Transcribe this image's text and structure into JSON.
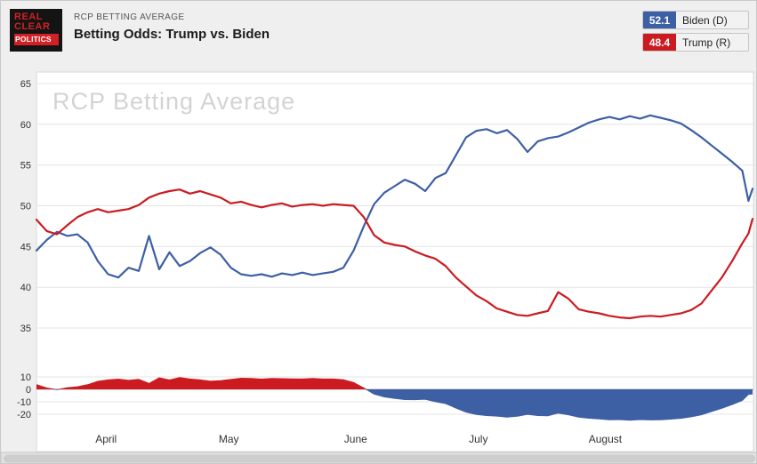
{
  "header": {
    "logo": {
      "line1": "REAL",
      "line2": "CLEAR",
      "line3": "POLITICS"
    },
    "kicker": "RCP BETTING AVERAGE",
    "title": "Betting Odds: Trump vs. Biden",
    "legend": [
      {
        "value": "52.1",
        "label": "Biden (D)",
        "color": "#3d5fa4"
      },
      {
        "value": "48.4",
        "label": "Trump (R)",
        "color": "#cb1b21"
      }
    ]
  },
  "chart_data": {
    "type": "line",
    "title": "RCP Betting Average",
    "watermark": "RCP Betting Average",
    "x_domain_days": [
      0,
      175
    ],
    "months": [
      {
        "label": "April",
        "day": 17
      },
      {
        "label": "May",
        "day": 47
      },
      {
        "label": "June",
        "day": 78
      },
      {
        "label": "July",
        "day": 108
      },
      {
        "label": "August",
        "day": 139
      }
    ],
    "main_panel": {
      "y_ticks": [
        65,
        60,
        55,
        50,
        45,
        40,
        35
      ],
      "y_range": [
        35,
        65
      ],
      "grid": true
    },
    "spread_panel": {
      "y_ticks": [
        10,
        0,
        -10,
        -20
      ],
      "note": "spread = Trump minus Biden; red area = Trump lead, blue area = Biden lead"
    },
    "days": [
      0,
      2.5,
      5,
      7.5,
      10,
      12.5,
      15,
      17.5,
      20,
      22.5,
      25,
      27.5,
      30,
      32.5,
      35,
      37.5,
      40,
      42.5,
      45,
      47.5,
      50,
      52.5,
      55,
      57.5,
      60,
      62.5,
      65,
      67.5,
      70,
      72.5,
      75,
      77.5,
      80,
      82.5,
      85,
      87.5,
      90,
      92.5,
      95,
      97.5,
      100,
      102.5,
      105,
      107.5,
      110,
      112.5,
      115,
      117.5,
      120,
      122.5,
      125,
      127.5,
      130,
      132.5,
      135,
      137.5,
      140,
      142.5,
      145,
      147.5,
      150,
      152.5,
      155,
      157.5,
      160,
      162.5,
      165,
      167.5,
      170,
      172.5,
      174,
      175
    ],
    "series": [
      {
        "name": "Biden (D)",
        "color": "#3d5fa4",
        "values": [
          44.5,
          45.8,
          46.8,
          46.3,
          46.5,
          45.5,
          43.2,
          41.6,
          41.2,
          42.4,
          42.0,
          46.3,
          42.2,
          44.3,
          42.6,
          43.2,
          44.2,
          44.9,
          44.0,
          42.4,
          41.6,
          41.4,
          41.6,
          41.3,
          41.7,
          41.5,
          41.8,
          41.5,
          41.7,
          41.9,
          42.4,
          44.5,
          47.5,
          50.2,
          51.6,
          52.4,
          53.2,
          52.7,
          51.8,
          53.4,
          54.0,
          56.2,
          58.4,
          59.2,
          59.4,
          58.9,
          59.3,
          58.2,
          56.6,
          57.9,
          58.3,
          58.5,
          59.0,
          59.6,
          60.2,
          60.6,
          60.9,
          60.6,
          61.0,
          60.7,
          61.1,
          60.8,
          60.5,
          60.1,
          59.3,
          58.4,
          57.4,
          56.4,
          55.4,
          54.3,
          50.6,
          52.1
        ]
      },
      {
        "name": "Trump (R)",
        "color": "#cb1b21",
        "values": [
          48.3,
          46.9,
          46.5,
          47.6,
          48.6,
          49.2,
          49.6,
          49.2,
          49.4,
          49.6,
          50.1,
          51.0,
          51.5,
          51.8,
          52.0,
          51.5,
          51.8,
          51.4,
          51.0,
          50.3,
          50.5,
          50.1,
          49.8,
          50.1,
          50.3,
          49.9,
          50.1,
          50.2,
          50.0,
          50.2,
          50.1,
          50.0,
          48.6,
          46.4,
          45.5,
          45.2,
          45.0,
          44.4,
          43.9,
          43.5,
          42.6,
          41.2,
          40.1,
          39.0,
          38.3,
          37.4,
          37.0,
          36.6,
          36.5,
          36.8,
          37.1,
          39.4,
          38.6,
          37.3,
          37.0,
          36.8,
          36.5,
          36.3,
          36.2,
          36.4,
          36.5,
          36.4,
          36.6,
          36.8,
          37.2,
          38.0,
          39.6,
          41.2,
          43.2,
          45.4,
          46.6,
          48.4
        ]
      }
    ]
  }
}
